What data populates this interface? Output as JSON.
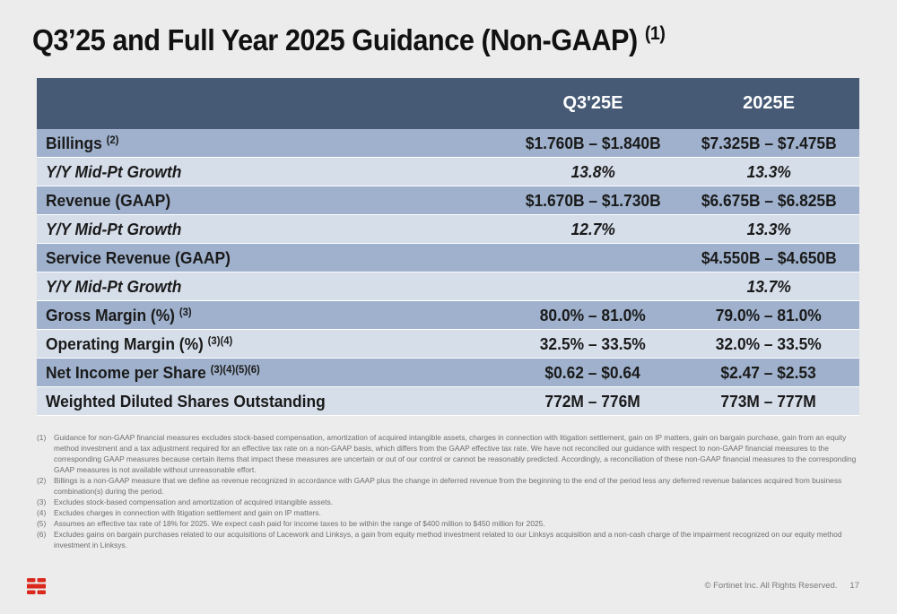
{
  "title": "Q3’25 and Full Year 2025 Guidance (Non-GAAP)",
  "title_sup": "(1)",
  "table": {
    "header": {
      "col0": "",
      "col1": "Q3'25E",
      "col2": "2025E"
    },
    "rows": [
      {
        "label": "Billings",
        "sup": "(2)",
        "q3": "$1.760B – $1.840B",
        "fy": "$7.325B – $7.475B"
      },
      {
        "label": "Y/Y Mid-Pt Growth",
        "sup": "",
        "q3": "13.8%",
        "fy": "13.3%"
      },
      {
        "label": "Revenue (GAAP)",
        "sup": "",
        "q3": "$1.670B – $1.730B",
        "fy": "$6.675B – $6.825B"
      },
      {
        "label": "Y/Y Mid-Pt Growth",
        "sup": "",
        "q3": "12.7%",
        "fy": "13.3%"
      },
      {
        "label": "Service Revenue (GAAP)",
        "sup": "",
        "q3": "",
        "fy": "$4.550B – $4.650B"
      },
      {
        "label": "Y/Y Mid-Pt Growth",
        "sup": "",
        "q3": "",
        "fy": "13.7%"
      },
      {
        "label": "Gross Margin (%)",
        "sup": "(3)",
        "q3": "80.0% – 81.0%",
        "fy": "79.0% – 81.0%"
      },
      {
        "label": "Operating Margin (%)",
        "sup": "(3)(4)",
        "q3": "32.5% – 33.5%",
        "fy": "32.0% – 33.5%"
      },
      {
        "label": "Net Income per Share",
        "sup": "(3)(4)(5)(6)",
        "q3": "$0.62 – $0.64",
        "fy": "$2.47 – $2.53"
      },
      {
        "label": "Weighted Diluted Shares Outstanding",
        "sup": "",
        "q3": "772M – 776M",
        "fy": "773M – 777M"
      }
    ]
  },
  "footnotes": [
    {
      "num": "(1)",
      "text": "Guidance for non-GAAP financial measures excludes stock-based compensation, amortization of acquired intangible assets, charges in connection with litigation settlement, gain on IP matters, gain on bargain purchase, gain from an equity method investment and a tax adjustment required for an effective tax rate on a non-GAAP basis, which differs from the GAAP effective tax rate. We have not reconciled our guidance with respect to non-GAAP financial measures to the corresponding GAAP measures because certain items that impact these measures are uncertain or out of our control or cannot be reasonably predicted. Accordingly, a reconciliation of these non-GAAP financial measures to the corresponding GAAP measures is not available without unreasonable effort."
    },
    {
      "num": "(2)",
      "text": "Billings is a non-GAAP measure that we define as revenue recognized in accordance with GAAP plus the change in deferred revenue from the beginning to the end of the period less any deferred revenue balances acquired from business combination(s) during the period."
    },
    {
      "num": "(3)",
      "text": "Excludes stock-based compensation and amortization of acquired intangible assets."
    },
    {
      "num": "(4)",
      "text": "Excludes charges in connection with litigation settlement and gain on IP matters."
    },
    {
      "num": "(5)",
      "text": "Assumes an effective tax rate of 18% for 2025. We expect cash paid for income taxes to be within the range of $400 million to $450 million for 2025."
    },
    {
      "num": "(6)",
      "text": "Excludes gains on bargain purchases related to our acquisitions of Lacework and Linksys, a gain from equity method investment related to our Linksys acquisition and a non-cash charge of the impairment recognized on our equity method investment in Linksys."
    }
  ],
  "footer": {
    "copyright": "© Fortinet Inc. All Rights Reserved.",
    "page": "17"
  },
  "logo": {
    "icon": "fortinet-logo-icon",
    "color": "#da291c"
  },
  "colors": {
    "header_bg": "#465a75",
    "row_dark": "#9fb1cc",
    "row_light": "#d6deea",
    "background": "#ececec"
  }
}
